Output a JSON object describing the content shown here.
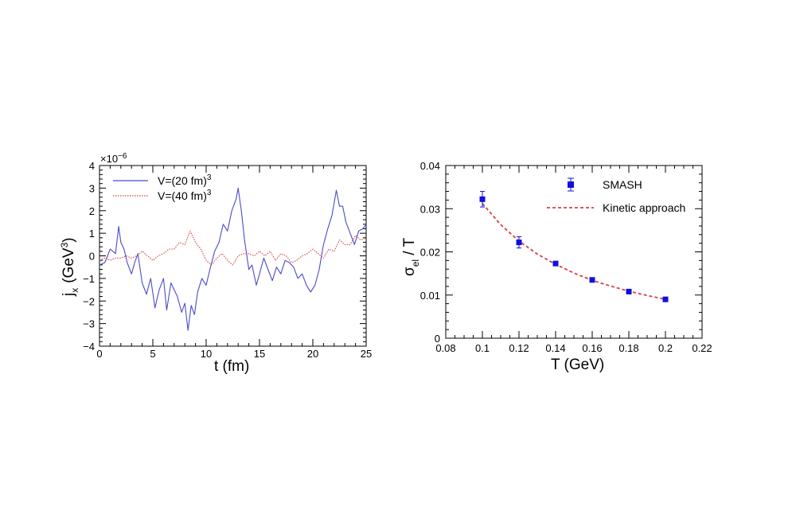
{
  "chart_data": [
    {
      "type": "line",
      "title": "",
      "xlabel": "t (fm)",
      "ylabel_main": "j",
      "ylabel_sub": "x",
      "ylabel_unit": "(GeV",
      "ylabel_unit_sup": "3",
      "ylabel_unit_close": ")",
      "y_multiplier": "×10",
      "y_multiplier_exp": "−6",
      "xlim": [
        0,
        25
      ],
      "ylim": [
        -4,
        4
      ],
      "xticks": [
        0,
        5,
        10,
        15,
        20,
        25
      ],
      "yticks": [
        -4,
        -3,
        -2,
        -1,
        0,
        1,
        2,
        3,
        4
      ],
      "xtick_labels": [
        "0",
        "5",
        "10",
        "15",
        "20",
        "25"
      ],
      "ytick_labels": [
        "−4",
        "−3",
        "−2",
        "−1",
        "0",
        "1",
        "2",
        "3",
        "4"
      ],
      "legend_position": "top-left",
      "series": [
        {
          "name": "V=(20 fm)",
          "name_sup": "3",
          "color": "#4b4bc8",
          "style": "solid",
          "x": [
            0,
            0.5,
            1,
            1.5,
            1.8,
            2,
            2.3,
            2.6,
            3,
            3.3,
            3.6,
            4,
            4.4,
            4.8,
            5.2,
            5.6,
            6,
            6.3,
            6.7,
            7,
            7.3,
            7.7,
            8,
            8.3,
            8.6,
            8.9,
            9.2,
            9.6,
            10,
            10.4,
            10.8,
            11.2,
            11.6,
            12,
            12.4,
            12.8,
            13,
            13.3,
            13.6,
            14,
            14.3,
            14.7,
            15,
            15.4,
            15.8,
            16.2,
            16.6,
            17,
            17.4,
            17.8,
            18.2,
            18.6,
            19,
            19.4,
            19.8,
            20.2,
            20.6,
            21,
            21.4,
            21.8,
            22.2,
            22.5,
            22.8,
            23.1,
            23.5,
            23.9,
            24.3,
            24.7,
            25
          ],
          "y": [
            -0.4,
            -0.3,
            0.3,
            0.1,
            1.3,
            0.6,
            0.3,
            -0.3,
            -0.8,
            -0.3,
            0.1,
            -1.2,
            -1.7,
            -1.0,
            -2.3,
            -1.5,
            -1.0,
            -2.4,
            -1.2,
            -1.5,
            -1.8,
            -2.5,
            -2.1,
            -3.3,
            -2.2,
            -2.6,
            -1.6,
            -1.0,
            -1.3,
            -0.5,
            0.2,
            0.6,
            1.4,
            1.1,
            2.0,
            2.5,
            3.0,
            2.0,
            0.7,
            -0.6,
            -0.4,
            -1.3,
            -0.8,
            -0.1,
            -0.6,
            -1.1,
            -0.5,
            -0.8,
            -0.2,
            -0.3,
            -0.5,
            -1.0,
            -0.8,
            -1.3,
            -1.6,
            -1.3,
            -0.6,
            0.5,
            1.2,
            1.8,
            2.9,
            2.2,
            2.2,
            1.5,
            1.0,
            0.5,
            1.1,
            1.2,
            1.4
          ]
        },
        {
          "name": "V=(40 fm)",
          "name_sup": "3",
          "color": "#d84040",
          "style": "dotted",
          "x": [
            0,
            0.5,
            1,
            1.5,
            2,
            2.5,
            3,
            3.5,
            4,
            4.5,
            5,
            5.5,
            6,
            6.5,
            7,
            7.5,
            8,
            8.5,
            9,
            9.5,
            10,
            10.5,
            11,
            11.5,
            12,
            12.5,
            13,
            13.5,
            14,
            14.5,
            15,
            15.5,
            16,
            16.5,
            17,
            17.5,
            18,
            18.5,
            19,
            19.5,
            20,
            20.5,
            21,
            21.5,
            22,
            22.5,
            23,
            23.5,
            24,
            24.5,
            25
          ],
          "y": [
            -0.2,
            -0.1,
            -0.2,
            -0.1,
            -0.1,
            0.0,
            -0.1,
            0.0,
            0.2,
            0.0,
            -0.2,
            0.0,
            0.1,
            0.3,
            0.3,
            0.6,
            0.5,
            1.1,
            0.6,
            0.3,
            -0.2,
            -0.4,
            -0.1,
            0.1,
            -0.2,
            -0.4,
            0.0,
            0.1,
            0.1,
            0.0,
            0.2,
            0.0,
            0.2,
            -0.2,
            0.1,
            0.0,
            -0.3,
            -0.2,
            0.0,
            0.1,
            0.3,
            0.1,
            -0.1,
            0.3,
            0.2,
            0.7,
            0.5,
            0.5,
            0.9,
            0.7,
            0.8
          ]
        }
      ]
    },
    {
      "type": "scatter",
      "title": "",
      "xlabel": "T (GeV)",
      "ylabel_main": "σ",
      "ylabel_sub": "el",
      "ylabel_rest": " / T",
      "xlim": [
        0.08,
        0.22
      ],
      "ylim": [
        0,
        0.04
      ],
      "xticks": [
        0.08,
        0.1,
        0.12,
        0.14,
        0.16,
        0.18,
        0.2,
        0.22
      ],
      "yticks": [
        0,
        0.01,
        0.02,
        0.03,
        0.04
      ],
      "xtick_labels": [
        "0.08",
        "0.1",
        "0.12",
        "0.14",
        "0.16",
        "0.18",
        "0.2",
        "0.22"
      ],
      "ytick_labels": [
        "0",
        "0.01",
        "0.02",
        "0.03",
        "0.04"
      ],
      "legend_position": "top-right",
      "series": [
        {
          "name": "SMASH",
          "color": "#1010dd",
          "marker": "square",
          "x": [
            0.1,
            0.12,
            0.14,
            0.16,
            0.18,
            0.2
          ],
          "y": [
            0.0322,
            0.0222,
            0.0173,
            0.0135,
            0.0108,
            0.009
          ],
          "yerr": [
            0.0018,
            0.0013,
            0.0005,
            0.0003,
            0.0003,
            0.0002
          ]
        },
        {
          "name": "Kinetic approach",
          "color": "#d84040",
          "style": "dashed",
          "x": [
            0.1,
            0.11,
            0.12,
            0.13,
            0.14,
            0.15,
            0.16,
            0.17,
            0.18,
            0.19,
            0.2
          ],
          "y": [
            0.0312,
            0.0263,
            0.0225,
            0.0195,
            0.0171,
            0.0151,
            0.0134,
            0.0121,
            0.0109,
            0.0099,
            0.009
          ]
        }
      ]
    }
  ]
}
